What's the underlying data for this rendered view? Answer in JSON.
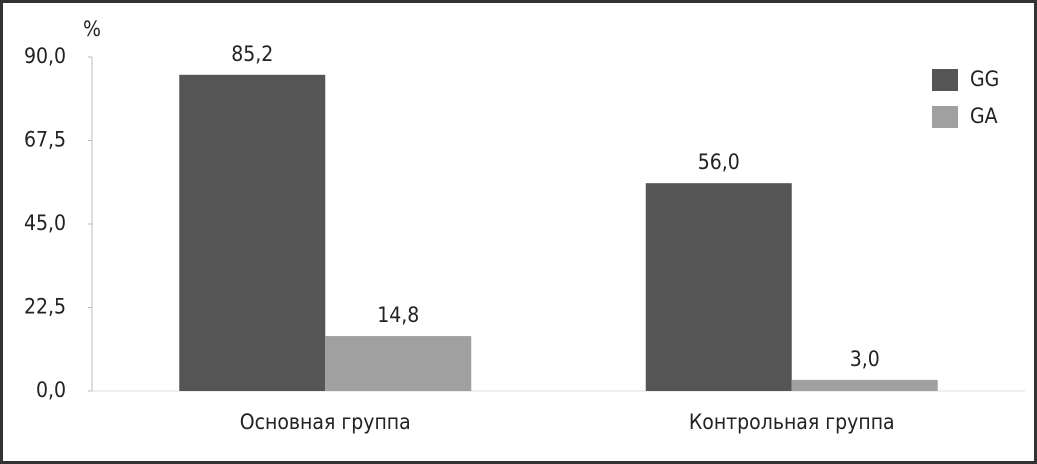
{
  "chart_data": {
    "type": "bar",
    "y_unit": "%",
    "categories": [
      "Основная группа",
      "Контрольная группа"
    ],
    "series": [
      {
        "name": "GG",
        "color": "#555555",
        "values": [
          85.2,
          56.0
        ],
        "value_labels": [
          "85,2",
          "56,0"
        ]
      },
      {
        "name": "GA",
        "color": "#a0a0a0",
        "values": [
          14.8,
          3.0
        ],
        "value_labels": [
          "14,8",
          "3,0"
        ]
      }
    ],
    "ylim": [
      0,
      90
    ],
    "yticks": [
      {
        "value": 0,
        "label": "0,0"
      },
      {
        "value": 22.5,
        "label": "22,5"
      },
      {
        "value": 45,
        "label": "45,0"
      },
      {
        "value": 67.5,
        "label": "67,5"
      },
      {
        "value": 90,
        "label": "90,0"
      }
    ],
    "grid": false,
    "legend": "top-right"
  }
}
